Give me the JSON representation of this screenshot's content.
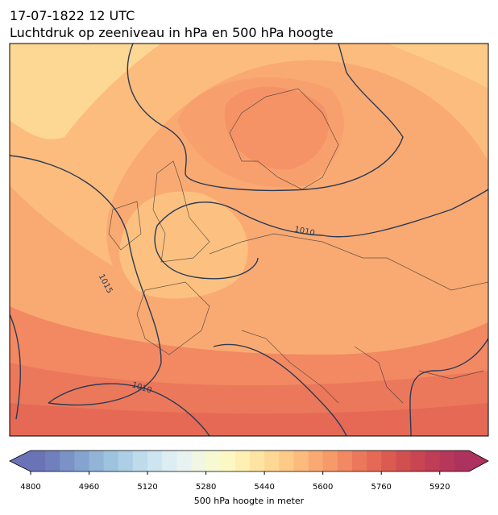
{
  "header": {
    "title": "17-07-1822 12 UTC",
    "subtitle": "Luchtdruk op zeeniveau in hPa en 500 hPa hoogte"
  },
  "map": {
    "contour_labels": [
      1010,
      1015,
      1010
    ]
  },
  "colorbar": {
    "lim": [
      4800,
      6000
    ],
    "ticks": [
      4800,
      4960,
      5120,
      5280,
      5440,
      5600,
      5760,
      5920
    ],
    "label": "500 hPa hoogte in meter",
    "colors": [
      "#6a73b5",
      "#7080bd",
      "#7a92c6",
      "#85a3cf",
      "#91b4d7",
      "#9ec3de",
      "#adcfe5",
      "#bddbeb",
      "#cde5f0",
      "#dcedf4",
      "#e8f3f1",
      "#f1f7e2",
      "#f8f9d2",
      "#fdf8c3",
      "#fef0b2",
      "#fee4a2",
      "#fdd794",
      "#fdca87",
      "#fbbb7c",
      "#f9aa72",
      "#f69a6a",
      "#f28962",
      "#ec785b",
      "#e56955",
      "#dc5b51",
      "#d24f50",
      "#c84551",
      "#bf3d55",
      "#b6375a",
      "#ad325e"
    ]
  }
}
